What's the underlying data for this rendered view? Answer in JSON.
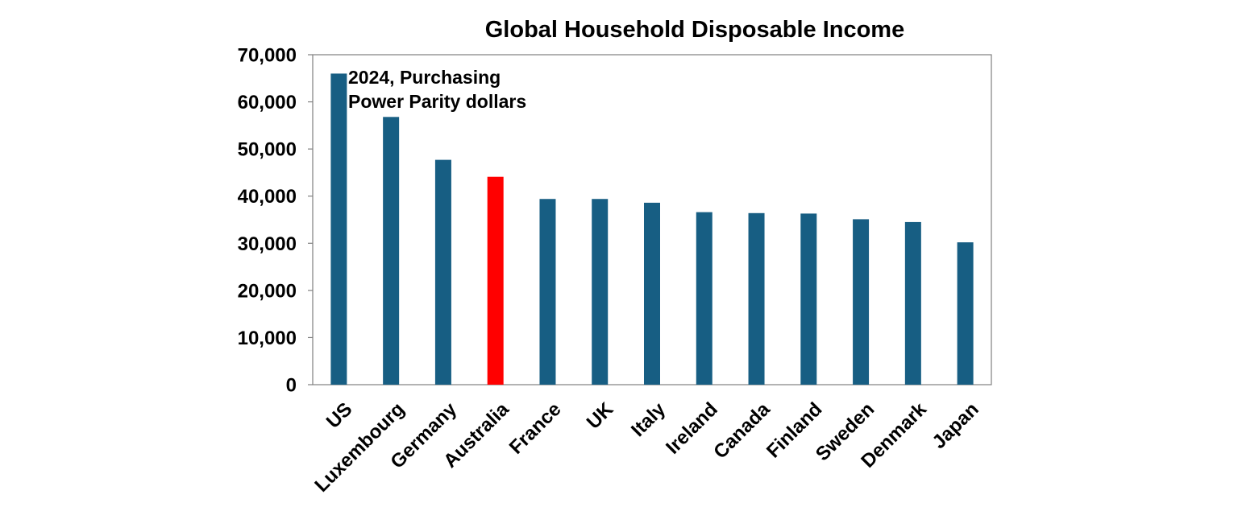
{
  "chart_data": {
    "type": "bar",
    "title": "Global Household Disposable Income",
    "annotation": [
      "2024, Purchasing",
      "Power Parity dollars"
    ],
    "categories": [
      "US",
      "Luxembourg",
      "Germany",
      "Australia",
      "France",
      "UK",
      "Italy",
      "Ireland",
      "Canada",
      "Finland",
      "Sweden",
      "Denmark",
      "Japan"
    ],
    "values": [
      66000,
      56800,
      47700,
      44100,
      39400,
      39400,
      38600,
      36600,
      36400,
      36300,
      35100,
      34500,
      30200
    ],
    "highlight_category": "Australia",
    "ylim": [
      0,
      70000
    ],
    "yticks": [
      0,
      10000,
      20000,
      30000,
      40000,
      50000,
      60000,
      70000
    ],
    "ytick_labels": [
      "0",
      "10,000",
      "20,000",
      "30,000",
      "40,000",
      "50,000",
      "60,000",
      "70,000"
    ],
    "xlabel": "",
    "ylabel": "",
    "grid": false,
    "legend": "none",
    "colors": {
      "bar": "#175e83",
      "highlight": "#ff0000",
      "axis": "#808080"
    }
  }
}
